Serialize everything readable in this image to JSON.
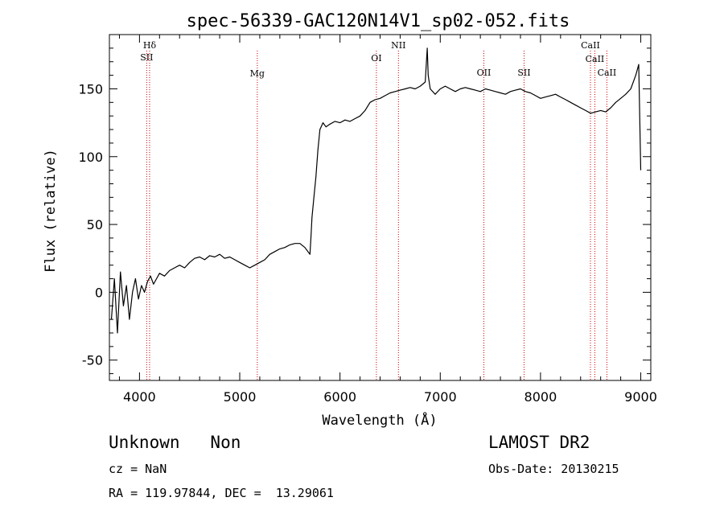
{
  "chart_data": {
    "type": "line",
    "title": "spec-56339-GAC120N14V1_sp02-052.fits",
    "xlabel": "Wavelength (Å)",
    "ylabel": "Flux (relative)",
    "xlim": [
      3700,
      9100
    ],
    "ylim": [
      -65,
      190
    ],
    "x_ticks": [
      4000,
      5000,
      6000,
      7000,
      8000,
      9000
    ],
    "y_ticks": [
      -50,
      0,
      50,
      100,
      150
    ],
    "grid": false,
    "series": [
      {
        "color": "#000000",
        "x": [
          3720,
          3750,
          3780,
          3810,
          3840,
          3870,
          3900,
          3930,
          3960,
          3990,
          4020,
          4050,
          4080,
          4110,
          4140,
          4170,
          4200,
          4250,
          4300,
          4350,
          4400,
          4450,
          4500,
          4550,
          4600,
          4650,
          4700,
          4750,
          4800,
          4850,
          4900,
          4950,
          5000,
          5050,
          5100,
          5150,
          5200,
          5250,
          5300,
          5350,
          5400,
          5450,
          5500,
          5550,
          5600,
          5650,
          5700,
          5710,
          5720,
          5740,
          5760,
          5780,
          5800,
          5830,
          5860,
          5900,
          5950,
          6000,
          6050,
          6100,
          6150,
          6200,
          6250,
          6300,
          6350,
          6400,
          6450,
          6500,
          6550,
          6600,
          6650,
          6700,
          6750,
          6800,
          6850,
          6870,
          6880,
          6900,
          6950,
          7000,
          7050,
          7100,
          7150,
          7200,
          7250,
          7300,
          7350,
          7400,
          7450,
          7500,
          7550,
          7600,
          7650,
          7700,
          7750,
          7800,
          7850,
          7900,
          7950,
          8000,
          8050,
          8100,
          8150,
          8200,
          8250,
          8300,
          8350,
          8400,
          8450,
          8500,
          8550,
          8600,
          8650,
          8700,
          8750,
          8800,
          8850,
          8900,
          8950,
          8980,
          9000
        ],
        "y": [
          -20,
          10,
          -30,
          15,
          -10,
          5,
          -20,
          0,
          10,
          -5,
          5,
          0,
          8,
          12,
          6,
          10,
          14,
          12,
          16,
          18,
          20,
          18,
          22,
          25,
          26,
          24,
          27,
          26,
          28,
          25,
          26,
          24,
          22,
          20,
          18,
          20,
          22,
          24,
          28,
          30,
          32,
          33,
          35,
          36,
          36,
          33,
          28,
          40,
          55,
          70,
          85,
          105,
          120,
          125,
          122,
          124,
          126,
          125,
          127,
          126,
          128,
          130,
          134,
          140,
          142,
          143,
          145,
          147,
          148,
          149,
          150,
          151,
          150,
          152,
          155,
          180,
          160,
          150,
          146,
          150,
          152,
          150,
          148,
          150,
          151,
          150,
          149,
          148,
          150,
          149,
          148,
          147,
          146,
          148,
          149,
          150,
          148,
          147,
          145,
          143,
          144,
          145,
          146,
          144,
          142,
          140,
          138,
          136,
          134,
          132,
          133,
          134,
          133,
          136,
          140,
          143,
          146,
          150,
          160,
          168,
          90
        ]
      }
    ],
    "line_markers": [
      {
        "label": "Hδ",
        "x": 4101
      },
      {
        "label": "SII",
        "x": 4072
      },
      {
        "label": "Mg",
        "x": 5175
      },
      {
        "label": "OI",
        "x": 6363
      },
      {
        "label": "NII",
        "x": 6583
      },
      {
        "label": "OII",
        "x": 7435
      },
      {
        "label": "SII",
        "x": 7836
      },
      {
        "label": "CaII",
        "x": 8498
      },
      {
        "label": "CaII",
        "x": 8542
      },
      {
        "label": "CaII",
        "x": 8662
      }
    ]
  },
  "info": {
    "class_text": "Unknown   Non",
    "survey_text": "LAMOST DR2",
    "cz_text": "cz = NaN",
    "obs_date_text": "Obs-Date: 20130215",
    "coords_text": "RA = 119.97844, DEC =  13.29061"
  }
}
